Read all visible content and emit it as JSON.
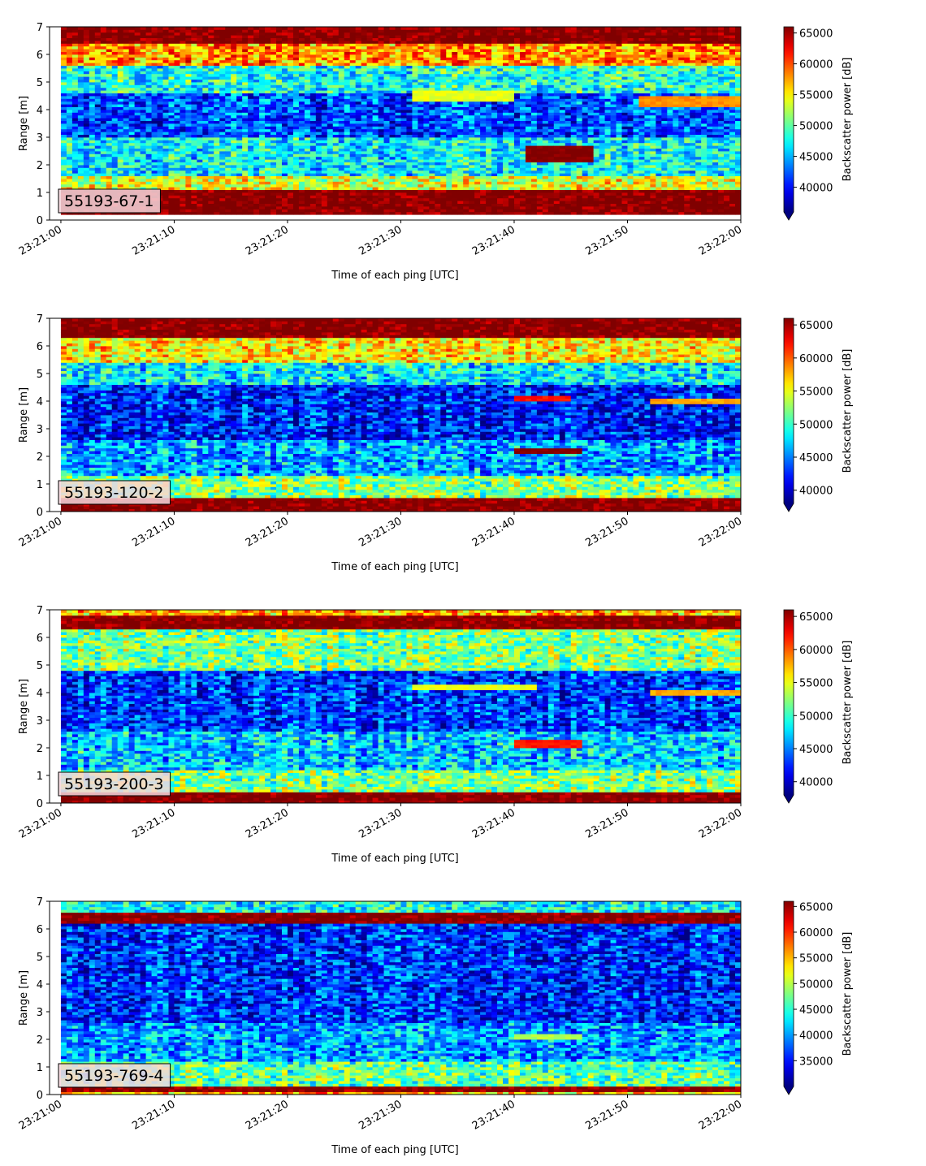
{
  "figure": {
    "x_ticks": [
      "23:21:00",
      "23:21:10",
      "23:21:20",
      "23:21:30",
      "23:21:40",
      "23:21:50",
      "23:22:00"
    ],
    "y_ticks": [
      "0",
      "1",
      "2",
      "3",
      "4",
      "5",
      "6",
      "7"
    ],
    "xlabel": "Time of each ping [UTC]",
    "ylabel": "Range [m]",
    "colorbar_label": "Backscatter power [dB]",
    "colormap": "jet"
  },
  "chart_data": [
    {
      "type": "heatmap",
      "label": "55193-67-1",
      "x_range": [
        "23:21:00",
        "23:22:00"
      ],
      "xlim": [
        "23:20:59",
        "23:22:00"
      ],
      "ylim": [
        0,
        7
      ],
      "color_range": [
        36000,
        66000
      ],
      "colorbar_ticks": [
        40000,
        45000,
        50000,
        55000,
        60000,
        65000
      ],
      "bands": [
        {
          "y_from": 0.2,
          "y_to": 1.1,
          "value": 66000
        },
        {
          "y_from": 1.1,
          "y_to": 1.6,
          "value": 54000
        },
        {
          "y_from": 1.6,
          "y_to": 3.0,
          "value": 47000
        },
        {
          "y_from": 3.0,
          "y_to": 4.6,
          "value": 42000
        },
        {
          "y_from": 4.6,
          "y_to": 5.6,
          "value": 48000
        },
        {
          "y_from": 5.6,
          "y_to": 6.4,
          "value": 58000
        },
        {
          "y_from": 6.4,
          "y_to": 7.0,
          "value": 66000
        }
      ],
      "features": [
        {
          "t_from": "23:21:41",
          "t_to": "23:21:47",
          "y_from": 2.1,
          "y_to": 2.7,
          "value": 66000
        },
        {
          "t_from": "23:21:31",
          "t_to": "23:21:40",
          "y_from": 4.3,
          "y_to": 4.7,
          "value": 54000
        },
        {
          "t_from": "23:21:51",
          "t_to": "23:22:00",
          "y_from": 4.1,
          "y_to": 4.5,
          "value": 58000
        }
      ]
    },
    {
      "type": "heatmap",
      "label": "55193-120-2",
      "x_range": [
        "23:21:00",
        "23:22:00"
      ],
      "xlim": [
        "23:20:59",
        "23:22:00"
      ],
      "ylim": [
        0,
        7
      ],
      "color_range": [
        38000,
        66000
      ],
      "colorbar_ticks": [
        40000,
        45000,
        50000,
        55000,
        60000,
        65000
      ],
      "bands": [
        {
          "y_from": 0.0,
          "y_to": 0.55,
          "value": 66000
        },
        {
          "y_from": 0.55,
          "y_to": 1.3,
          "value": 52000
        },
        {
          "y_from": 1.3,
          "y_to": 2.6,
          "value": 46000
        },
        {
          "y_from": 2.6,
          "y_to": 4.6,
          "value": 42000
        },
        {
          "y_from": 4.6,
          "y_to": 5.4,
          "value": 48000
        },
        {
          "y_from": 5.4,
          "y_to": 6.3,
          "value": 56000
        },
        {
          "y_from": 6.3,
          "y_to": 7.0,
          "value": 66000
        }
      ],
      "features": [
        {
          "t_from": "23:21:40",
          "t_to": "23:21:46",
          "y_from": 2.1,
          "y_to": 2.35,
          "value": 66000
        },
        {
          "t_from": "23:21:40",
          "t_to": "23:21:45",
          "y_from": 4.0,
          "y_to": 4.2,
          "value": 62000
        },
        {
          "t_from": "23:21:52",
          "t_to": "23:22:00",
          "y_from": 3.95,
          "y_to": 4.15,
          "value": 58000
        }
      ]
    },
    {
      "type": "heatmap",
      "label": "55193-200-3",
      "x_range": [
        "23:21:00",
        "23:22:00"
      ],
      "xlim": [
        "23:20:59",
        "23:22:00"
      ],
      "ylim": [
        0,
        7
      ],
      "color_range": [
        38000,
        66000
      ],
      "colorbar_ticks": [
        40000,
        45000,
        50000,
        55000,
        60000,
        65000
      ],
      "bands": [
        {
          "y_from": 0.0,
          "y_to": 0.45,
          "value": 66000
        },
        {
          "y_from": 0.45,
          "y_to": 1.2,
          "value": 52000
        },
        {
          "y_from": 1.2,
          "y_to": 2.6,
          "value": 47000
        },
        {
          "y_from": 2.6,
          "y_to": 4.8,
          "value": 43000
        },
        {
          "y_from": 4.8,
          "y_to": 6.3,
          "value": 52000
        },
        {
          "y_from": 6.3,
          "y_to": 6.8,
          "value": 66000
        },
        {
          "y_from": 6.8,
          "y_to": 7.0,
          "value": 58000
        }
      ],
      "features": [
        {
          "t_from": "23:21:40",
          "t_to": "23:21:46",
          "y_from": 2.05,
          "y_to": 2.3,
          "value": 62000
        },
        {
          "t_from": "23:21:31",
          "t_to": "23:21:42",
          "y_from": 4.1,
          "y_to": 4.3,
          "value": 55000
        },
        {
          "t_from": "23:21:52",
          "t_to": "23:22:00",
          "y_from": 3.95,
          "y_to": 4.15,
          "value": 58000
        }
      ]
    },
    {
      "type": "heatmap",
      "label": "55193-769-4",
      "x_range": [
        "23:21:00",
        "23:22:00"
      ],
      "xlim": [
        "23:20:59",
        "23:22:00"
      ],
      "ylim": [
        0,
        7
      ],
      "color_range": [
        30000,
        66000
      ],
      "colorbar_ticks": [
        35000,
        40000,
        45000,
        50000,
        55000,
        60000,
        65000
      ],
      "bands": [
        {
          "y_from": 0.0,
          "y_to": 0.15,
          "value": 55000
        },
        {
          "y_from": 0.15,
          "y_to": 0.35,
          "value": 66000
        },
        {
          "y_from": 0.35,
          "y_to": 1.2,
          "value": 47000
        },
        {
          "y_from": 1.2,
          "y_to": 2.6,
          "value": 40000
        },
        {
          "y_from": 2.6,
          "y_to": 6.2,
          "value": 36000
        },
        {
          "y_from": 6.2,
          "y_to": 6.6,
          "value": 66000
        },
        {
          "y_from": 6.6,
          "y_to": 7.0,
          "value": 44000
        }
      ],
      "features": [
        {
          "t_from": "23:21:40",
          "t_to": "23:21:46",
          "y_from": 2.0,
          "y_to": 2.2,
          "value": 50000
        }
      ]
    }
  ]
}
